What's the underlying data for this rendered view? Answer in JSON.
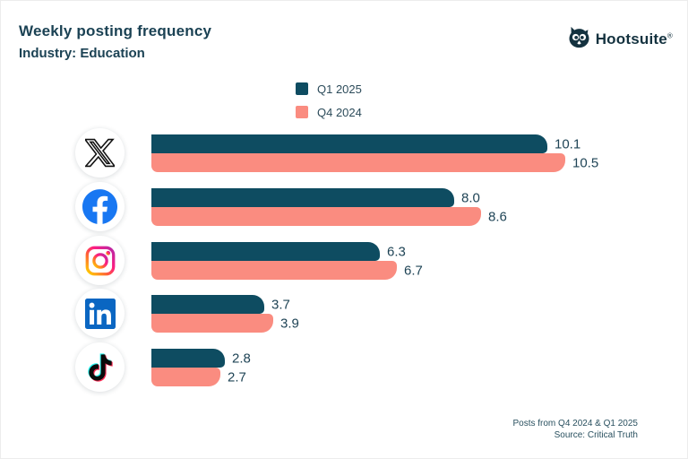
{
  "header": {
    "title": "Weekly posting frequency",
    "subtitle": "Industry: Education"
  },
  "logo": {
    "brand": "Hootsuite",
    "registered": "®",
    "color": "#14323f"
  },
  "legend": [
    {
      "label": "Q1 2025",
      "color": "#0e4c61"
    },
    {
      "label": "Q4 2024",
      "color": "#fa8c80"
    }
  ],
  "chart_data": {
    "type": "bar",
    "orientation": "horizontal",
    "title": "Weekly posting frequency",
    "subtitle": "Industry: Education",
    "categories": [
      "X",
      "Facebook",
      "Instagram",
      "LinkedIn",
      "TikTok"
    ],
    "icons": [
      "x-icon",
      "facebook-icon",
      "instagram-icon",
      "linkedin-icon",
      "tiktok-icon"
    ],
    "series": [
      {
        "name": "Q1 2025",
        "color": "#0e4c61",
        "values": [
          10.1,
          8.0,
          6.3,
          3.7,
          2.8
        ],
        "labels": [
          "10.1",
          "8.0",
          "6.3",
          "3.7",
          "2.8"
        ]
      },
      {
        "name": "Q4 2024",
        "color": "#fa8c80",
        "values": [
          10.5,
          8.6,
          6.7,
          3.9,
          2.7
        ],
        "labels": [
          "10.5",
          "8.6",
          "6.7",
          "3.9",
          "2.7"
        ]
      }
    ],
    "value_labels_shown": true,
    "grid": false,
    "legend_position": "top-center",
    "xlim": [
      1.14,
      11
    ]
  },
  "footer": {
    "line1": "Posts from Q4 2024 & Q1 2025",
    "line2": "Source: Critical Truth"
  },
  "colors": {
    "background": "#ffffff",
    "text_dark": "#1b4254",
    "bar_q1": "#0e4c61",
    "bar_q4": "#fa8c80",
    "facebook_blue": "#1877F2",
    "linkedin_blue": "#0A66C2",
    "tiktok_cyan": "#25F4EE",
    "tiktok_pink": "#FE2C55"
  }
}
